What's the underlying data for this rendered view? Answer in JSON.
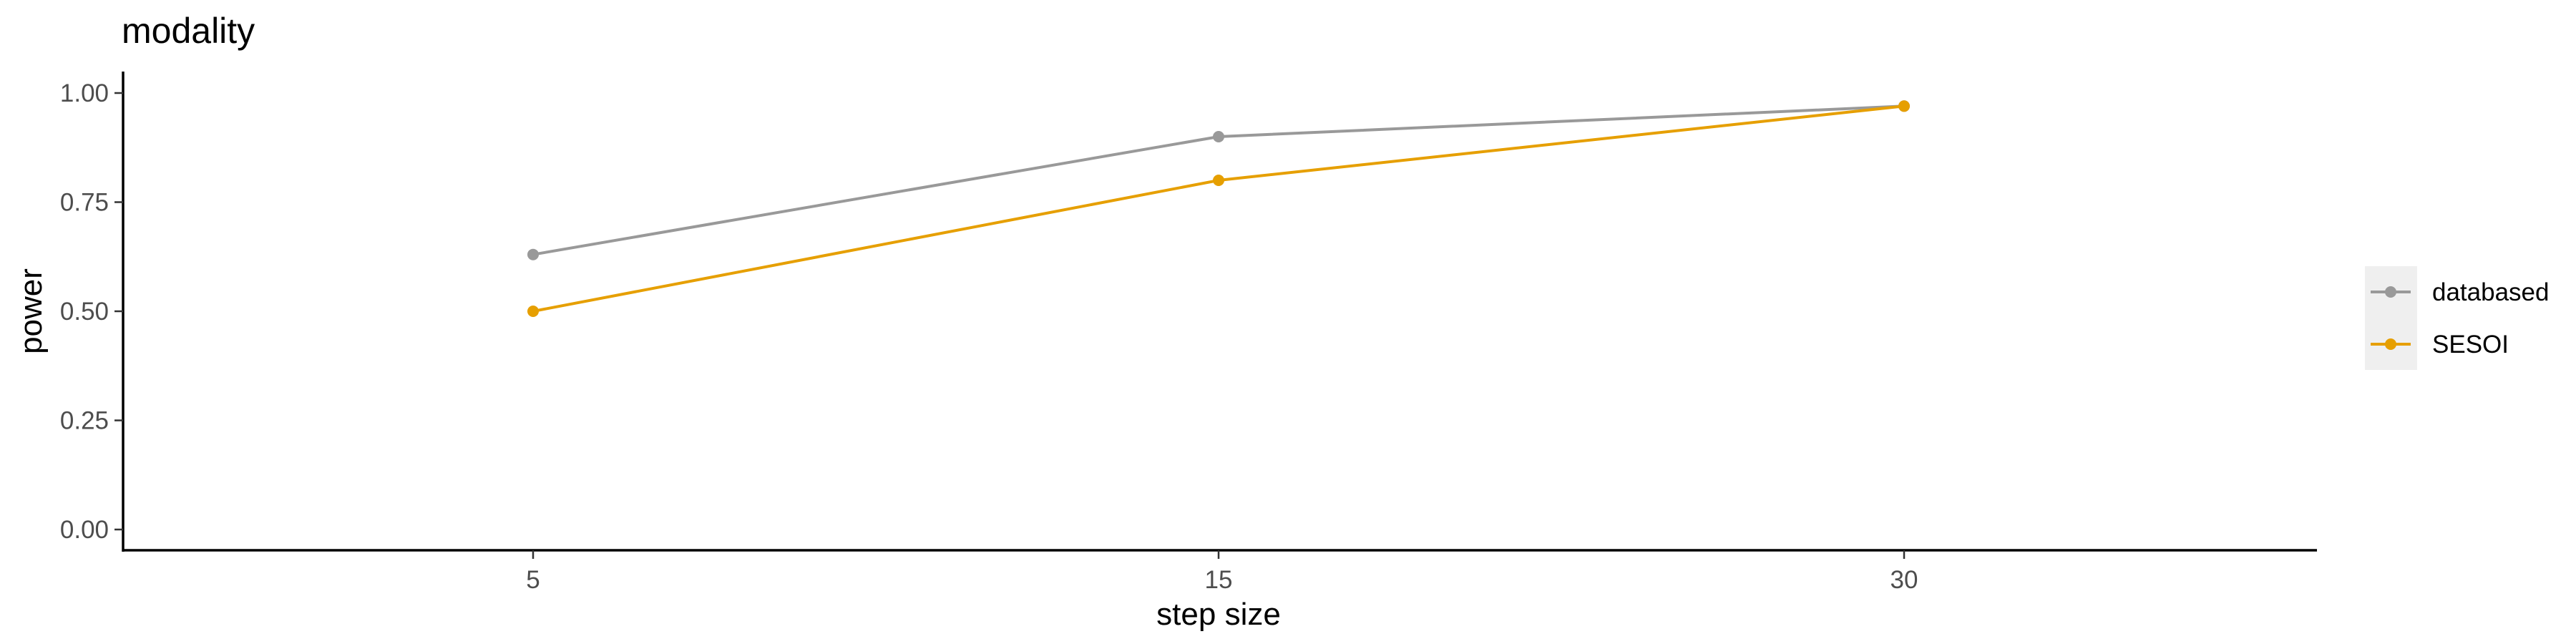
{
  "chart_data": {
    "type": "line",
    "title": "modality",
    "xlabel": "step size",
    "ylabel": "power",
    "categories": [
      "5",
      "15",
      "30"
    ],
    "ylim": [
      0,
      1
    ],
    "y_ticks": [
      "0.00",
      "0.25",
      "0.50",
      "0.75",
      "1.00"
    ],
    "grid": false,
    "legend_position": "right",
    "series": [
      {
        "name": "databased",
        "color": "#999999",
        "values": [
          0.63,
          0.9,
          0.97
        ]
      },
      {
        "name": "SESOI",
        "color": "#E69F00",
        "values": [
          0.5,
          0.8,
          0.97
        ]
      }
    ]
  }
}
